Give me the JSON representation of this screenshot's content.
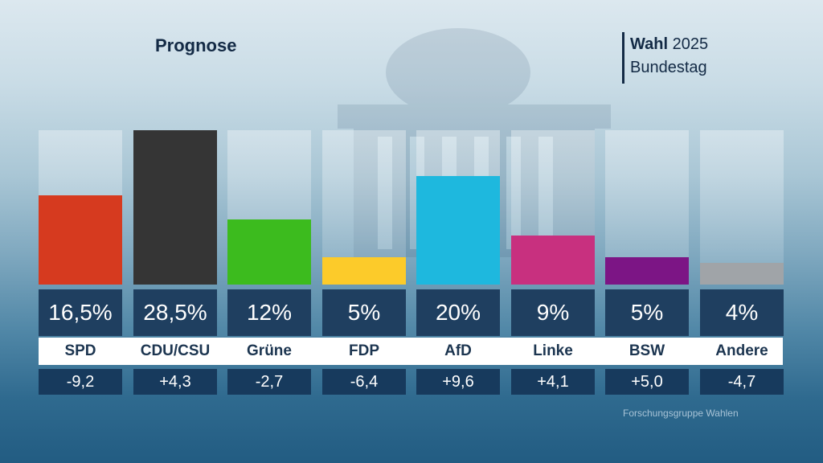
{
  "header": {
    "title": "Prognose",
    "brand_bold": "Wahl",
    "brand_year": "2025",
    "brand_sub": "Bundestag"
  },
  "source": "Forschungsgruppe Wahlen",
  "chart_data": {
    "type": "bar",
    "title": "Prognose",
    "xlabel": "",
    "ylabel": "",
    "ylim": [
      0,
      28.5
    ],
    "categories": [
      "SPD",
      "CDU/CSU",
      "Grüne",
      "FDP",
      "AfD",
      "Linke",
      "BSW",
      "Andere"
    ],
    "values": [
      16.5,
      28.5,
      12,
      5,
      20,
      9,
      5,
      4
    ],
    "value_labels": [
      "16,5%",
      "28,5%",
      "12%",
      "5%",
      "20%",
      "9%",
      "5%",
      "4%"
    ],
    "changes": [
      -9.2,
      4.3,
      -2.7,
      -6.4,
      9.6,
      4.1,
      5.0,
      -4.7
    ],
    "change_labels": [
      "-9,2",
      "+4,3",
      "-2,7",
      "-6,4",
      "+9,6",
      "+4,1",
      "+5,0",
      "-4,7"
    ],
    "colors": [
      "#d63a1f",
      "#353535",
      "#3cbb1e",
      "#fccb2a",
      "#1eb8de",
      "#c8307f",
      "#7c1585",
      "#a0a4a8"
    ],
    "grid": false,
    "legend": "none"
  }
}
